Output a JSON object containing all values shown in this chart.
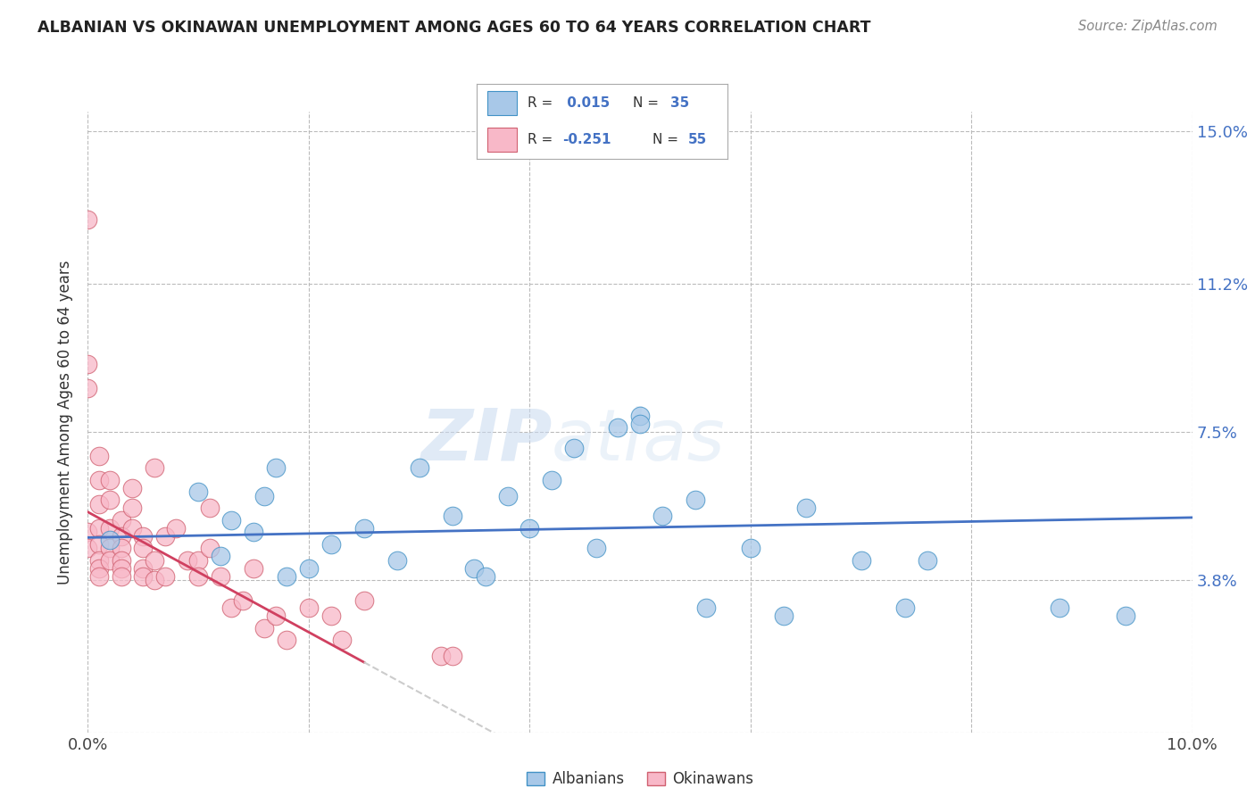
{
  "title": "ALBANIAN VS OKINAWAN UNEMPLOYMENT AMONG AGES 60 TO 64 YEARS CORRELATION CHART",
  "source": "Source: ZipAtlas.com",
  "ylabel": "Unemployment Among Ages 60 to 64 years",
  "xlim": [
    0.0,
    0.1
  ],
  "ylim": [
    0.0,
    0.155
  ],
  "xticks": [
    0.0,
    0.02,
    0.04,
    0.06,
    0.08,
    0.1
  ],
  "xtick_labels": [
    "0.0%",
    "",
    "",
    "",
    "",
    "10.0%"
  ],
  "ytick_positions": [
    0.0,
    0.038,
    0.075,
    0.112,
    0.15
  ],
  "ytick_labels": [
    "",
    "3.8%",
    "7.5%",
    "11.2%",
    "15.0%"
  ],
  "albanian_x": [
    0.002,
    0.01,
    0.012,
    0.013,
    0.015,
    0.016,
    0.017,
    0.018,
    0.02,
    0.022,
    0.025,
    0.028,
    0.03,
    0.033,
    0.035,
    0.036,
    0.038,
    0.04,
    0.042,
    0.044,
    0.046,
    0.048,
    0.05,
    0.05,
    0.052,
    0.055,
    0.056,
    0.06,
    0.063,
    0.065,
    0.07,
    0.074,
    0.076,
    0.088,
    0.094
  ],
  "albanian_y": [
    0.048,
    0.06,
    0.044,
    0.053,
    0.05,
    0.059,
    0.066,
    0.039,
    0.041,
    0.047,
    0.051,
    0.043,
    0.066,
    0.054,
    0.041,
    0.039,
    0.059,
    0.051,
    0.063,
    0.071,
    0.046,
    0.076,
    0.079,
    0.077,
    0.054,
    0.058,
    0.031,
    0.046,
    0.029,
    0.056,
    0.043,
    0.031,
    0.043,
    0.031,
    0.029
  ],
  "okinawan_x": [
    0.0,
    0.0,
    0.0,
    0.0,
    0.0,
    0.001,
    0.001,
    0.001,
    0.001,
    0.001,
    0.001,
    0.001,
    0.001,
    0.002,
    0.002,
    0.002,
    0.002,
    0.002,
    0.003,
    0.003,
    0.003,
    0.003,
    0.003,
    0.003,
    0.004,
    0.004,
    0.004,
    0.005,
    0.005,
    0.005,
    0.005,
    0.006,
    0.006,
    0.006,
    0.007,
    0.007,
    0.008,
    0.009,
    0.01,
    0.01,
    0.011,
    0.011,
    0.012,
    0.013,
    0.014,
    0.015,
    0.016,
    0.017,
    0.018,
    0.02,
    0.022,
    0.023,
    0.025,
    0.032,
    0.033
  ],
  "okinawan_y": [
    0.128,
    0.092,
    0.086,
    0.05,
    0.046,
    0.069,
    0.063,
    0.057,
    0.051,
    0.047,
    0.043,
    0.041,
    0.039,
    0.063,
    0.058,
    0.051,
    0.046,
    0.043,
    0.053,
    0.049,
    0.046,
    0.043,
    0.041,
    0.039,
    0.061,
    0.056,
    0.051,
    0.049,
    0.046,
    0.041,
    0.039,
    0.066,
    0.043,
    0.038,
    0.049,
    0.039,
    0.051,
    0.043,
    0.043,
    0.039,
    0.056,
    0.046,
    0.039,
    0.031,
    0.033,
    0.041,
    0.026,
    0.029,
    0.023,
    0.031,
    0.029,
    0.023,
    0.033,
    0.019,
    0.019
  ],
  "albanian_color": "#a8c8e8",
  "albanian_edge": "#4292c6",
  "okinawan_color": "#f8b8c8",
  "okinawan_edge": "#d06070",
  "trend_albanian_color": "#4472c4",
  "trend_okinawan_color": "#d04060",
  "trend_okinawan_dash_color": "#cccccc",
  "grid_color": "#bbbbbb",
  "background_color": "#ffffff",
  "watermark_zip": "ZIP",
  "watermark_atlas": "atlas",
  "R_albanian": 0.015,
  "N_albanian": 35,
  "R_okinawan": -0.251,
  "N_okinawan": 55,
  "legend_blue_color": "#4472c4",
  "legend_pink_face": "#f8b8c8",
  "legend_blue_face": "#a8c8e8"
}
